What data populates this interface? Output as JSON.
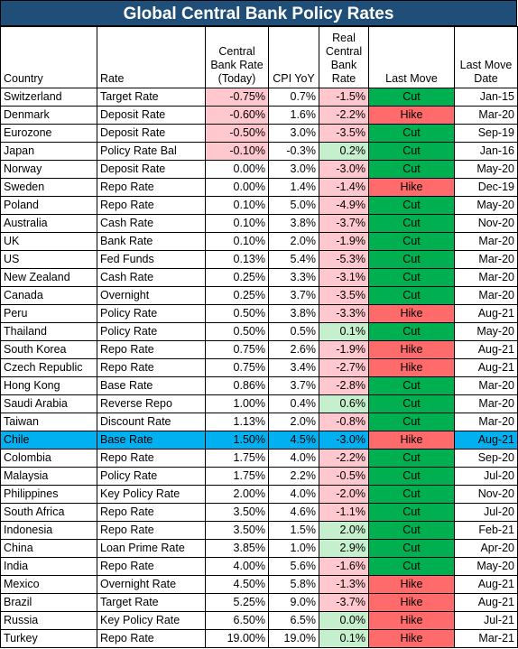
{
  "title": "Global Central Bank Policy Rates",
  "colors": {
    "title_bg": "#1f4e79",
    "negative_fill": "#ffc7ce",
    "positive_fill": "#c6efce",
    "cut_fill": "#00b050",
    "hike_fill": "#ff6b6b",
    "highlight_row": "#00b0f0"
  },
  "headers": {
    "country": "Country",
    "rate": "Rate",
    "cb_rate": "Central Bank Rate (Today)",
    "cpi": "CPI YoY",
    "real_rate": "Real Central Bank Rate",
    "last_move": "Last Move",
    "last_move_date": "Last Move Date"
  },
  "highlighted_country": "Chile",
  "rows": [
    {
      "country": "Switzerland",
      "rate": "Target Rate",
      "cb_rate": "-0.75%",
      "cpi": "0.7%",
      "real_rate": "-1.5%",
      "last_move": "Cut",
      "date": "Jan-15"
    },
    {
      "country": "Denmark",
      "rate": "Deposit Rate",
      "cb_rate": "-0.60%",
      "cpi": "1.6%",
      "real_rate": "-2.2%",
      "last_move": "Hike",
      "date": "Mar-20"
    },
    {
      "country": "Eurozone",
      "rate": "Deposit Rate",
      "cb_rate": "-0.50%",
      "cpi": "3.0%",
      "real_rate": "-3.5%",
      "last_move": "Cut",
      "date": "Sep-19"
    },
    {
      "country": "Japan",
      "rate": "Policy Rate Bal",
      "cb_rate": "-0.10%",
      "cpi": "-0.3%",
      "real_rate": "0.2%",
      "last_move": "Cut",
      "date": "Jan-16"
    },
    {
      "country": "Norway",
      "rate": "Deposit Rate",
      "cb_rate": "0.00%",
      "cpi": "3.0%",
      "real_rate": "-3.0%",
      "last_move": "Cut",
      "date": "May-20"
    },
    {
      "country": "Sweden",
      "rate": "Repo Rate",
      "cb_rate": "0.00%",
      "cpi": "1.4%",
      "real_rate": "-1.4%",
      "last_move": "Hike",
      "date": "Dec-19"
    },
    {
      "country": "Poland",
      "rate": "Repo Rate",
      "cb_rate": "0.10%",
      "cpi": "5.0%",
      "real_rate": "-4.9%",
      "last_move": "Cut",
      "date": "May-20"
    },
    {
      "country": "Australia",
      "rate": "Cash Rate",
      "cb_rate": "0.10%",
      "cpi": "3.8%",
      "real_rate": "-3.7%",
      "last_move": "Cut",
      "date": "Nov-20"
    },
    {
      "country": "UK",
      "rate": "Bank Rate",
      "cb_rate": "0.10%",
      "cpi": "2.0%",
      "real_rate": "-1.9%",
      "last_move": "Cut",
      "date": "Mar-20"
    },
    {
      "country": "US",
      "rate": "Fed Funds",
      "cb_rate": "0.13%",
      "cpi": "5.4%",
      "real_rate": "-5.3%",
      "last_move": "Cut",
      "date": "Mar-20"
    },
    {
      "country": "New Zealand",
      "rate": "Cash Rate",
      "cb_rate": "0.25%",
      "cpi": "3.3%",
      "real_rate": "-3.1%",
      "last_move": "Cut",
      "date": "Mar-20"
    },
    {
      "country": "Canada",
      "rate": "Overnight",
      "cb_rate": "0.25%",
      "cpi": "3.7%",
      "real_rate": "-3.5%",
      "last_move": "Cut",
      "date": "Mar-20"
    },
    {
      "country": "Peru",
      "rate": "Policy Rate",
      "cb_rate": "0.50%",
      "cpi": "3.8%",
      "real_rate": "-3.3%",
      "last_move": "Hike",
      "date": "Aug-21"
    },
    {
      "country": "Thailand",
      "rate": "Policy Rate",
      "cb_rate": "0.50%",
      "cpi": "0.5%",
      "real_rate": "0.1%",
      "last_move": "Cut",
      "date": "May-20"
    },
    {
      "country": "South Korea",
      "rate": "Repo Rate",
      "cb_rate": "0.75%",
      "cpi": "2.6%",
      "real_rate": "-1.9%",
      "last_move": "Hike",
      "date": "Aug-21"
    },
    {
      "country": "Czech Republic",
      "rate": "Repo Rate",
      "cb_rate": "0.75%",
      "cpi": "3.4%",
      "real_rate": "-2.7%",
      "last_move": "Hike",
      "date": "Aug-21"
    },
    {
      "country": "Hong Kong",
      "rate": "Base Rate",
      "cb_rate": "0.86%",
      "cpi": "3.7%",
      "real_rate": "-2.8%",
      "last_move": "Cut",
      "date": "Mar-20"
    },
    {
      "country": "Saudi Arabia",
      "rate": "Reverse Repo",
      "cb_rate": "1.00%",
      "cpi": "0.4%",
      "real_rate": "0.6%",
      "last_move": "Cut",
      "date": "Mar-20"
    },
    {
      "country": "Taiwan",
      "rate": "Discount Rate",
      "cb_rate": "1.13%",
      "cpi": "2.0%",
      "real_rate": "-0.8%",
      "last_move": "Cut",
      "date": "Mar-20"
    },
    {
      "country": "Chile",
      "rate": "Base Rate",
      "cb_rate": "1.50%",
      "cpi": "4.5%",
      "real_rate": "-3.0%",
      "last_move": "Hike",
      "date": "Aug-21"
    },
    {
      "country": "Colombia",
      "rate": "Repo Rate",
      "cb_rate": "1.75%",
      "cpi": "4.0%",
      "real_rate": "-2.2%",
      "last_move": "Cut",
      "date": "Sep-20"
    },
    {
      "country": "Malaysia",
      "rate": "Policy Rate",
      "cb_rate": "1.75%",
      "cpi": "2.2%",
      "real_rate": "-0.5%",
      "last_move": "Cut",
      "date": "Jul-20"
    },
    {
      "country": "Philippines",
      "rate": "Key Policy Rate",
      "cb_rate": "2.00%",
      "cpi": "4.0%",
      "real_rate": "-2.0%",
      "last_move": "Cut",
      "date": "Nov-20"
    },
    {
      "country": "South Africa",
      "rate": "Repo Rate",
      "cb_rate": "3.50%",
      "cpi": "4.6%",
      "real_rate": "-1.1%",
      "last_move": "Cut",
      "date": "Jul-20"
    },
    {
      "country": "Indonesia",
      "rate": "Repo Rate",
      "cb_rate": "3.50%",
      "cpi": "1.5%",
      "real_rate": "2.0%",
      "last_move": "Cut",
      "date": "Feb-21"
    },
    {
      "country": "China",
      "rate": "Loan Prime Rate",
      "cb_rate": "3.85%",
      "cpi": "1.0%",
      "real_rate": "2.9%",
      "last_move": "Cut",
      "date": "Apr-20"
    },
    {
      "country": "India",
      "rate": "Repo Rate",
      "cb_rate": "4.00%",
      "cpi": "5.6%",
      "real_rate": "-1.6%",
      "last_move": "Cut",
      "date": "May-20"
    },
    {
      "country": "Mexico",
      "rate": "Overnight Rate",
      "cb_rate": "4.50%",
      "cpi": "5.8%",
      "real_rate": "-1.3%",
      "last_move": "Hike",
      "date": "Aug-21"
    },
    {
      "country": "Brazil",
      "rate": "Target Rate",
      "cb_rate": "5.25%",
      "cpi": "9.0%",
      "real_rate": "-3.7%",
      "last_move": "Hike",
      "date": "Aug-21"
    },
    {
      "country": "Russia",
      "rate": "Key Policy Rate",
      "cb_rate": "6.50%",
      "cpi": "6.5%",
      "real_rate": "0.0%",
      "last_move": "Hike",
      "date": "Jul-21"
    },
    {
      "country": "Turkey",
      "rate": "Repo Rate",
      "cb_rate": "19.00%",
      "cpi": "19.0%",
      "real_rate": "0.1%",
      "last_move": "Hike",
      "date": "Mar-21"
    }
  ]
}
